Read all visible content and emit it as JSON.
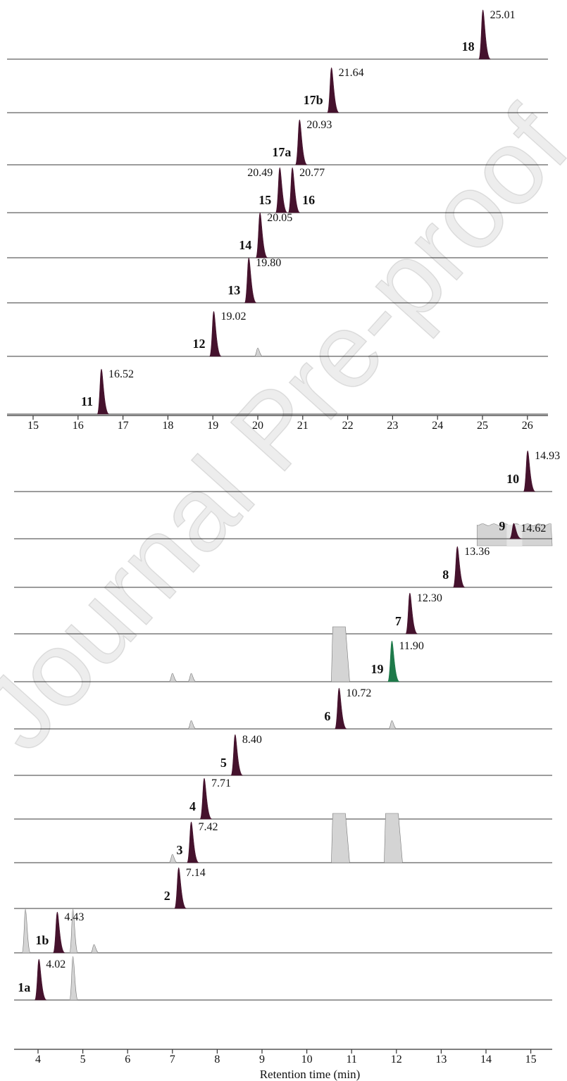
{
  "watermark": "Journal Pre-proof",
  "colors": {
    "main": "#45122d",
    "green": "#1e7a4a",
    "other": "#d4d4d4",
    "axis": "#333333",
    "baseline": "#606060"
  },
  "chart_data": [
    {
      "type": "line",
      "xlabel": "",
      "xlim": [
        14.5,
        26.5
      ],
      "xticks": [
        15,
        16,
        17,
        18,
        19,
        20,
        21,
        22,
        23,
        24,
        25,
        26
      ],
      "traces": [
        {
          "label": "18",
          "peak_rt": 25.01,
          "rt_label": "25.01",
          "highlight": "main",
          "others": []
        },
        {
          "label": "17b",
          "peak_rt": 21.64,
          "rt_label": "21.64",
          "highlight": "main",
          "others": []
        },
        {
          "label": "17a",
          "peak_rt": 20.93,
          "rt_label": "20.93",
          "highlight": "main",
          "others": []
        },
        {
          "label": "15",
          "peak_rt": 20.49,
          "rt_label": "20.49",
          "highlight": "main",
          "others": [],
          "second": {
            "label": "16",
            "peak_rt": 20.77,
            "rt_label": "20.77"
          }
        },
        {
          "label": "14",
          "peak_rt": 20.05,
          "rt_label": "20.05",
          "highlight": "main",
          "others": []
        },
        {
          "label": "13",
          "peak_rt": 19.8,
          "rt_label": "19.80",
          "highlight": "main",
          "others": []
        },
        {
          "label": "12",
          "peak_rt": 19.02,
          "rt_label": "19.02",
          "highlight": "main",
          "others": [
            20.0
          ]
        },
        {
          "label": "11",
          "peak_rt": 16.52,
          "rt_label": "16.52",
          "highlight": "main",
          "others": []
        }
      ]
    },
    {
      "type": "line",
      "xlabel": "Retention time (min)",
      "xlim": [
        3.5,
        15.5
      ],
      "xticks": [
        4,
        5,
        6,
        7,
        8,
        9,
        10,
        11,
        12,
        13,
        14,
        15
      ],
      "traces": [
        {
          "label": "10",
          "peak_rt": 14.93,
          "rt_label": "14.93",
          "highlight": "main",
          "others": []
        },
        {
          "label": "9",
          "peak_rt": 14.62,
          "rt_label": "14.62",
          "highlight": "main",
          "others": [],
          "noisy_band": [
            13.8,
            15.5
          ]
        },
        {
          "label": "8",
          "peak_rt": 13.36,
          "rt_label": "13.36",
          "highlight": "main",
          "others": []
        },
        {
          "label": "7",
          "peak_rt": 12.3,
          "rt_label": "12.30",
          "highlight": "main",
          "others": []
        },
        {
          "label": "19",
          "peak_rt": 11.9,
          "rt_label": "11.90",
          "highlight": "green",
          "others": [
            7.0,
            7.42,
            10.72
          ]
        },
        {
          "label": "6",
          "peak_rt": 10.72,
          "rt_label": "10.72",
          "highlight": "main",
          "others": [
            7.42,
            11.9
          ]
        },
        {
          "label": "5",
          "peak_rt": 8.4,
          "rt_label": "8.40",
          "highlight": "main",
          "others": []
        },
        {
          "label": "4",
          "peak_rt": 7.71,
          "rt_label": "7.71",
          "highlight": "main",
          "others": []
        },
        {
          "label": "3",
          "peak_rt": 7.42,
          "rt_label": "7.42",
          "highlight": "main",
          "others": [
            7.0,
            10.72,
            11.9
          ]
        },
        {
          "label": "2",
          "peak_rt": 7.14,
          "rt_label": "7.14",
          "highlight": "main",
          "others": []
        },
        {
          "label": "1b",
          "peak_rt": 4.43,
          "rt_label": "4.43",
          "highlight": "main",
          "others": [
            3.72,
            4.78,
            5.25
          ]
        },
        {
          "label": "1a",
          "peak_rt": 4.02,
          "rt_label": "4.02",
          "highlight": "main",
          "others": [
            4.78
          ]
        }
      ]
    }
  ]
}
